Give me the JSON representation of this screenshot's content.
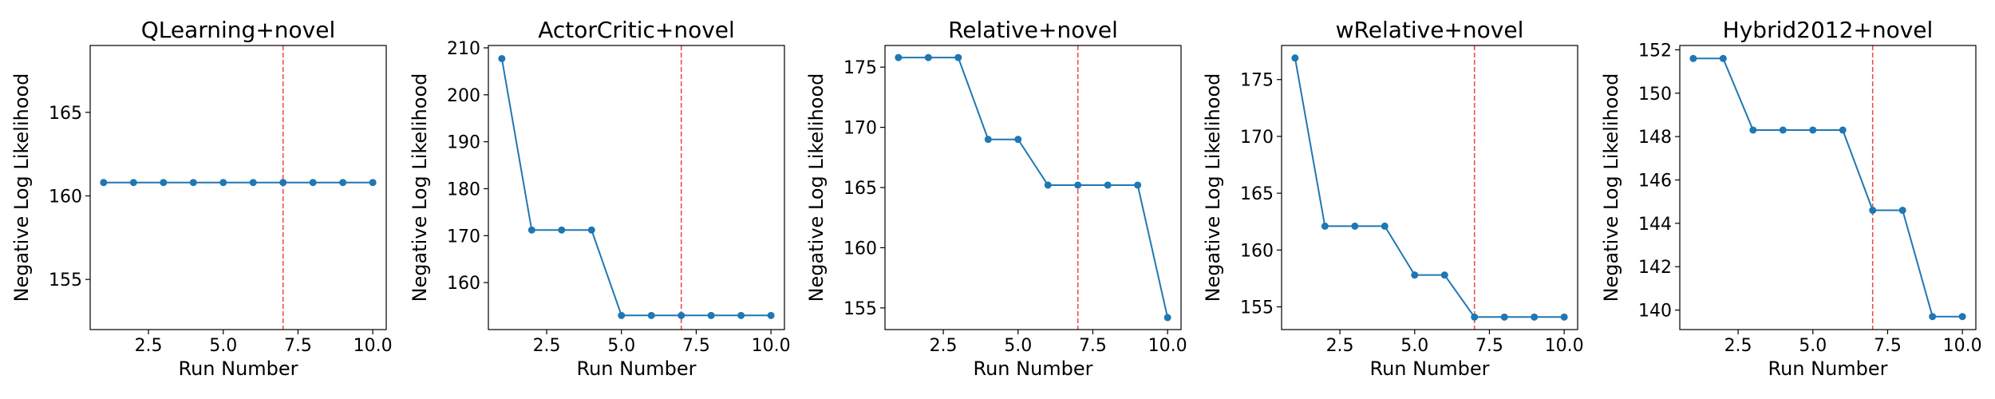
{
  "figure": {
    "line_color": "#1f77b4",
    "marker_color": "#1f77b4",
    "vline_color": "#e8514a"
  },
  "chart_data": [
    {
      "type": "line",
      "title": "QLearning+novel",
      "xlabel": "Run Number",
      "ylabel": "Negative Log Likelihood",
      "x": [
        1,
        2,
        3,
        4,
        5,
        6,
        7,
        8,
        9,
        10
      ],
      "values": [
        160.8,
        160.8,
        160.8,
        160.8,
        160.8,
        160.8,
        160.8,
        160.8,
        160.8,
        160.8
      ],
      "xlim": [
        0.55,
        10.45
      ],
      "ylim": [
        152.0,
        169.0
      ],
      "xticks": [
        2.5,
        5.0,
        7.5,
        10.0
      ],
      "xtick_labels": [
        "2.5",
        "5.0",
        "7.5",
        "10.0"
      ],
      "yticks": [
        155,
        160,
        165
      ],
      "ytick_labels": [
        "155",
        "160",
        "165"
      ],
      "vline_x": 7,
      "grid": false
    },
    {
      "type": "line",
      "title": "ActorCritic+novel",
      "xlabel": "Run Number",
      "ylabel": "Negative Log Likelihood",
      "x": [
        1,
        2,
        3,
        4,
        5,
        6,
        7,
        8,
        9,
        10
      ],
      "values": [
        207.7,
        171.2,
        171.2,
        171.2,
        153.0,
        153.0,
        153.0,
        153.0,
        153.0,
        153.0
      ],
      "xlim": [
        0.55,
        10.45
      ],
      "ylim": [
        150.0,
        210.5
      ],
      "xticks": [
        2.5,
        5.0,
        7.5,
        10.0
      ],
      "xtick_labels": [
        "2.5",
        "5.0",
        "7.5",
        "10.0"
      ],
      "yticks": [
        160,
        170,
        180,
        190,
        200,
        210
      ],
      "ytick_labels": [
        "160",
        "170",
        "180",
        "190",
        "200",
        "210"
      ],
      "vline_x": 7,
      "grid": false
    },
    {
      "type": "line",
      "title": "Relative+novel",
      "xlabel": "Run Number",
      "ylabel": "Negative Log Likelihood",
      "x": [
        1,
        2,
        3,
        4,
        5,
        6,
        7,
        8,
        9,
        10
      ],
      "values": [
        175.8,
        175.8,
        175.8,
        169.0,
        169.0,
        165.2,
        165.2,
        165.2,
        165.2,
        154.2
      ],
      "xlim": [
        0.55,
        10.45
      ],
      "ylim": [
        153.2,
        176.8
      ],
      "xticks": [
        2.5,
        5.0,
        7.5,
        10.0
      ],
      "xtick_labels": [
        "2.5",
        "5.0",
        "7.5",
        "10.0"
      ],
      "yticks": [
        155,
        160,
        165,
        170,
        175
      ],
      "ytick_labels": [
        "155",
        "160",
        "165",
        "170",
        "175"
      ],
      "vline_x": 7,
      "grid": false
    },
    {
      "type": "line",
      "title": "wRelative+novel",
      "xlabel": "Run Number",
      "ylabel": "Negative Log Likelihood",
      "x": [
        1,
        2,
        3,
        4,
        5,
        6,
        7,
        8,
        9,
        10
      ],
      "values": [
        176.9,
        162.1,
        162.1,
        162.1,
        157.8,
        157.8,
        154.1,
        154.1,
        154.1,
        154.1
      ],
      "xlim": [
        0.55,
        10.45
      ],
      "ylim": [
        153.0,
        178.0
      ],
      "xticks": [
        2.5,
        5.0,
        7.5,
        10.0
      ],
      "xtick_labels": [
        "2.5",
        "5.0",
        "7.5",
        "10.0"
      ],
      "yticks": [
        155,
        160,
        165,
        170,
        175
      ],
      "ytick_labels": [
        "155",
        "160",
        "165",
        "170",
        "175"
      ],
      "vline_x": 7,
      "grid": false
    },
    {
      "type": "line",
      "title": "Hybrid2012+novel",
      "xlabel": "Run Number",
      "ylabel": "Negative Log Likelihood",
      "x": [
        1,
        2,
        3,
        4,
        5,
        6,
        7,
        8,
        9,
        10
      ],
      "values": [
        151.6,
        151.6,
        148.3,
        148.3,
        148.3,
        148.3,
        144.6,
        144.6,
        139.7,
        139.7
      ],
      "xlim": [
        0.55,
        10.45
      ],
      "ylim": [
        139.1,
        152.2
      ],
      "xticks": [
        2.5,
        5.0,
        7.5,
        10.0
      ],
      "xtick_labels": [
        "2.5",
        "5.0",
        "7.5",
        "10.0"
      ],
      "yticks": [
        140,
        142,
        144,
        146,
        148,
        150,
        152
      ],
      "ytick_labels": [
        "140",
        "142",
        "144",
        "146",
        "148",
        "150",
        "152"
      ],
      "vline_x": 7,
      "grid": false
    }
  ]
}
